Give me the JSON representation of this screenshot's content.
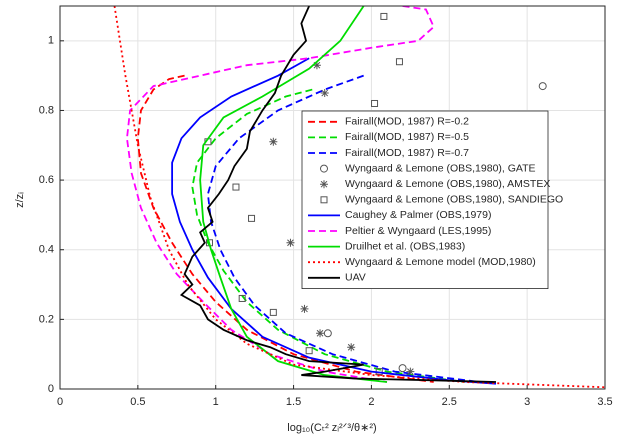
{
  "chart_data": {
    "type": "line",
    "xlabel": "log₁₀(Cₜ² zᵢ²ᐟ³/θ∗²)",
    "ylabel": "z/zᵢ",
    "xlim": [
      0,
      3.5
    ],
    "ylim": [
      0,
      1.1
    ],
    "xticks": [
      0,
      0.5,
      1,
      1.5,
      2,
      2.5,
      3,
      3.5
    ],
    "yticks": [
      0,
      0.2,
      0.4,
      0.6,
      0.8,
      1
    ],
    "grid": true,
    "legend": "upper-right",
    "series": [
      {
        "name": "Fairall(MOD, 1987) R=-0.2",
        "color": "#ff0000",
        "style": "dashed",
        "x": [
          0.8,
          0.7,
          0.6,
          0.52,
          0.5,
          0.52,
          0.6,
          0.72,
          0.85,
          1.0,
          1.2,
          1.5,
          1.9,
          2.4
        ],
        "y": [
          0.9,
          0.89,
          0.86,
          0.8,
          0.72,
          0.62,
          0.52,
          0.42,
          0.33,
          0.25,
          0.17,
          0.1,
          0.05,
          0.02
        ]
      },
      {
        "name": "Fairall(MOD, 1987) R=-0.5",
        "color": "#00dd00",
        "style": "dashed",
        "x": [
          1.62,
          1.45,
          1.2,
          1.0,
          0.88,
          0.85,
          0.88,
          0.95,
          1.05,
          1.2,
          1.4,
          1.7,
          2.1,
          2.6
        ],
        "y": [
          0.86,
          0.84,
          0.79,
          0.72,
          0.65,
          0.58,
          0.5,
          0.42,
          0.34,
          0.25,
          0.17,
          0.1,
          0.05,
          0.02
        ]
      },
      {
        "name": "Fairall(MOD, 1987) R=-0.7",
        "color": "#0000ff",
        "style": "dashed",
        "x": [
          1.95,
          1.7,
          1.4,
          1.15,
          1.0,
          0.95,
          0.97,
          1.03,
          1.12,
          1.25,
          1.45,
          1.75,
          2.15,
          2.7
        ],
        "y": [
          0.9,
          0.86,
          0.8,
          0.72,
          0.64,
          0.56,
          0.48,
          0.4,
          0.32,
          0.24,
          0.16,
          0.1,
          0.05,
          0.02
        ]
      },
      {
        "name": "Wyngaard & Lemone (OBS,1980), GATE",
        "color": "#555555",
        "style": "none",
        "marker": "circle",
        "x": [
          3.1,
          1.72,
          2.2
        ],
        "y": [
          0.87,
          0.16,
          0.06
        ]
      },
      {
        "name": "Wyngaard & Lemone (OBS,1980), AMSTEX",
        "color": "#555555",
        "style": "none",
        "marker": "star",
        "x": [
          1.65,
          1.7,
          1.37,
          1.48,
          1.57,
          1.67,
          1.87,
          2.25
        ],
        "y": [
          0.93,
          0.85,
          0.71,
          0.42,
          0.23,
          0.16,
          0.12,
          0.05
        ]
      },
      {
        "name": "Wyngaard & Lemone (OBS,1980), SANDIEGO",
        "color": "#555555",
        "style": "none",
        "marker": "square",
        "x": [
          2.08,
          2.18,
          2.02,
          0.95,
          1.13,
          1.23,
          0.96,
          1.37,
          1.17,
          1.6,
          2.05
        ],
        "y": [
          1.07,
          0.94,
          0.82,
          0.71,
          0.58,
          0.49,
          0.42,
          0.22,
          0.26,
          0.11,
          0.05
        ]
      },
      {
        "name": "Caughey & Palmer (OBS,1979)",
        "color": "#0000ff",
        "style": "solid",
        "x": [
          1.6,
          1.4,
          1.1,
          0.9,
          0.78,
          0.72,
          0.72,
          0.77,
          0.85,
          0.95,
          1.1,
          1.3,
          1.6,
          2.0,
          2.5,
          2.8
        ],
        "y": [
          0.95,
          0.9,
          0.84,
          0.78,
          0.72,
          0.65,
          0.56,
          0.48,
          0.4,
          0.32,
          0.23,
          0.15,
          0.09,
          0.05,
          0.025,
          0.015
        ]
      },
      {
        "name": "Peltier & Wyngaard (LES,1995)",
        "color": "#ff00ff",
        "style": "dashed",
        "x": [
          2.2,
          2.35,
          2.4,
          2.3,
          2.0,
          1.6,
          1.2,
          0.9,
          0.6,
          0.45,
          0.43,
          0.46,
          0.52,
          0.62,
          0.75,
          0.92,
          1.1,
          1.35,
          1.7,
          2.1
        ],
        "y": [
          1.1,
          1.09,
          1.04,
          1.0,
          0.98,
          0.95,
          0.93,
          0.9,
          0.87,
          0.8,
          0.72,
          0.62,
          0.52,
          0.42,
          0.33,
          0.25,
          0.17,
          0.1,
          0.05,
          0.02
        ]
      },
      {
        "name": "Druilhet et al. (OBS,1983)",
        "color": "#00dd00",
        "style": "solid",
        "x": [
          1.95,
          1.8,
          1.6,
          1.3,
          1.05,
          0.92,
          0.9,
          0.92,
          0.97,
          1.03,
          1.1,
          1.2,
          1.4,
          1.7,
          2.1
        ],
        "y": [
          1.1,
          1.0,
          0.92,
          0.84,
          0.78,
          0.7,
          0.6,
          0.48,
          0.4,
          0.32,
          0.23,
          0.15,
          0.08,
          0.04,
          0.02
        ]
      },
      {
        "name": "Wyngaard & Lemone model (MOD,1980)",
        "color": "#ff0000",
        "style": "dotted",
        "x": [
          0.35,
          0.42,
          0.5,
          0.58,
          0.7,
          0.82,
          1.0,
          1.2,
          1.5,
          2.0,
          2.6,
          3.2,
          3.5
        ],
        "y": [
          1.1,
          0.9,
          0.7,
          0.55,
          0.4,
          0.3,
          0.2,
          0.13,
          0.07,
          0.04,
          0.02,
          0.01,
          0.005
        ]
      },
      {
        "name": "UAV",
        "color": "#000000",
        "style": "solid",
        "x": [
          1.6,
          1.55,
          1.58,
          1.5,
          1.42,
          1.38,
          1.3,
          1.22,
          1.2,
          1.12,
          1.08,
          1.02,
          0.95,
          0.98,
          0.9,
          0.93,
          0.85,
          0.8,
          0.85,
          0.78,
          0.9,
          0.95,
          1.05,
          1.2,
          1.35,
          1.45,
          1.6,
          1.95,
          1.7,
          1.55,
          1.9,
          2.4,
          2.8
        ],
        "y": [
          1.1,
          1.05,
          1.0,
          0.96,
          0.9,
          0.85,
          0.8,
          0.74,
          0.69,
          0.64,
          0.6,
          0.56,
          0.52,
          0.48,
          0.45,
          0.42,
          0.38,
          0.33,
          0.3,
          0.27,
          0.24,
          0.2,
          0.17,
          0.14,
          0.12,
          0.1,
          0.08,
          0.07,
          0.05,
          0.04,
          0.03,
          0.025,
          0.02
        ]
      }
    ]
  }
}
